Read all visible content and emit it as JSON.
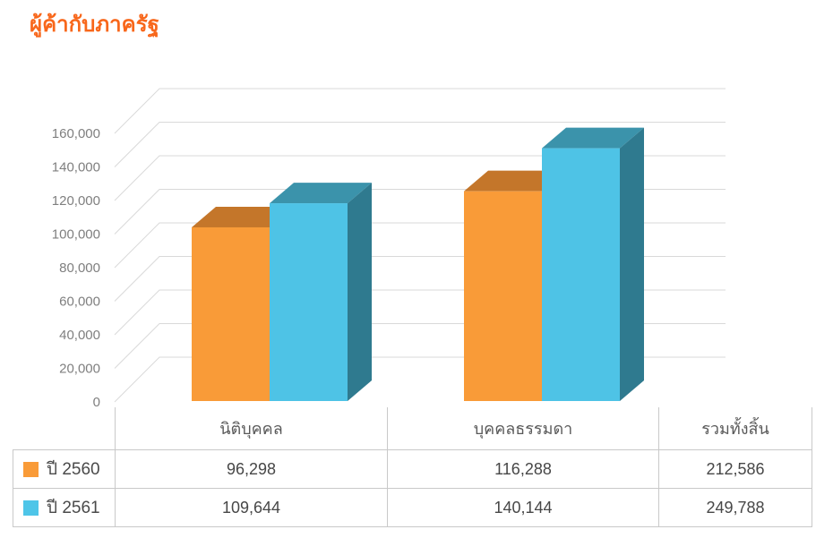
{
  "title": "ผู้ค้ากับภาครัฐ",
  "colors": {
    "title": "#f8671b",
    "grid": "#d9d9d9",
    "tick_label": "#7f7f7f",
    "table_border": "#c9c9c9"
  },
  "chart_data": {
    "type": "bar",
    "style": "3d-clustered",
    "title": "ผู้ค้ากับภาครัฐ",
    "categories": [
      "นิติบุคคล",
      "บุคคลธรรมดา"
    ],
    "series": [
      {
        "name": "ปี 2560",
        "values": [
          96298,
          116288
        ],
        "total": 212586,
        "color_front": "#f99b38",
        "color_top": "#c4762a",
        "color_side": "#a8621f"
      },
      {
        "name": "ปี 2561",
        "values": [
          109644,
          140144
        ],
        "total": 249788,
        "color_front": "#4ec3e6",
        "color_top": "#3b93ab",
        "color_side": "#2f7a8f"
      }
    ],
    "xlabel": "",
    "ylabel": "",
    "ylim": [
      0,
      160000
    ],
    "ytick_step": 20000,
    "yticks": [
      "0",
      "20,000",
      "40,000",
      "60,000",
      "80,000",
      "100,000",
      "120,000",
      "140,000",
      "160,000"
    ],
    "grid": true,
    "legend_position": "table-rows-left"
  },
  "table": {
    "columns": [
      "นิติบุคคล",
      "บุคคลธรรมดา",
      "รวมทั้งสิ้น"
    ],
    "rows": [
      {
        "label": "ปี 2560",
        "swatch_color": "#f99b38",
        "values": [
          "96,298",
          "116,288",
          "212,586"
        ]
      },
      {
        "label": "ปี 2561",
        "swatch_color": "#4ec5e8",
        "values": [
          "109,644",
          "140,144",
          "249,788"
        ]
      }
    ]
  }
}
